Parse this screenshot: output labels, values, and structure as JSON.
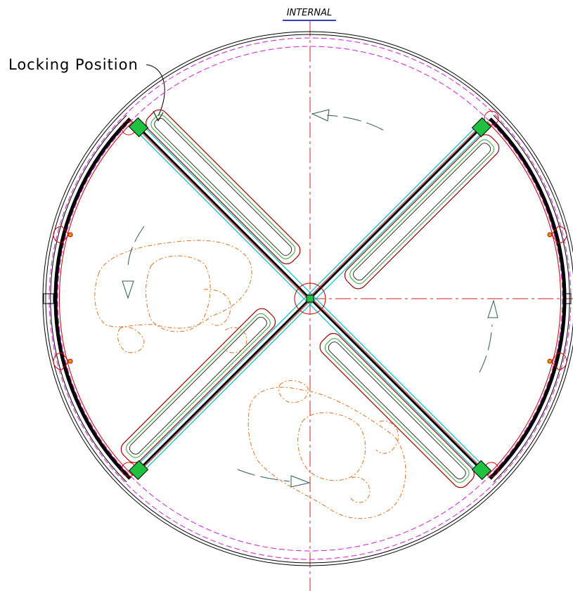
{
  "labels": {
    "internal": "INTERNAL",
    "locking_position": "Locking Position"
  }
}
